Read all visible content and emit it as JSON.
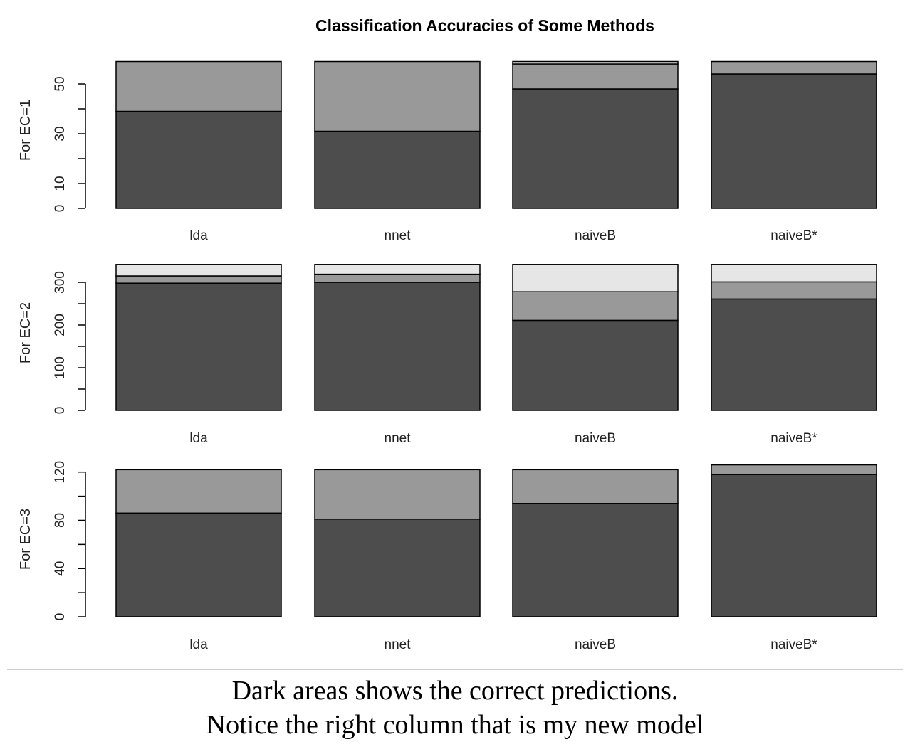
{
  "chart_data": {
    "type": "bar",
    "title": "Classification Accuracies of Some Methods",
    "stacked": true,
    "colors": [
      "#4d4d4d",
      "#999999",
      "#e6e6e6"
    ],
    "categories": [
      "lda",
      "nnet",
      "naiveB",
      "naiveB*"
    ],
    "panels": [
      {
        "ylabel": "For EC=1",
        "ylim": [
          0,
          60
        ],
        "yticks": [
          0,
          10,
          20,
          30,
          40,
          50
        ],
        "ytick_labels": [
          "0",
          "10",
          "",
          "30",
          "",
          "50"
        ],
        "series": [
          {
            "values": [
              39,
              31,
              48,
              54
            ]
          },
          {
            "values": [
              20,
              28,
              10,
              5
            ]
          },
          {
            "values": [
              0,
              0,
              1,
              0
            ]
          }
        ]
      },
      {
        "ylabel": "For EC=2",
        "ylim": [
          0,
          350
        ],
        "yticks": [
          0,
          50,
          100,
          150,
          200,
          250,
          300
        ],
        "ytick_labels": [
          "0",
          "",
          "100",
          "",
          "200",
          "",
          "300"
        ],
        "series": [
          {
            "values": [
              298,
              300,
              211,
              261
            ]
          },
          {
            "values": [
              17,
              19,
              67,
              40
            ]
          },
          {
            "values": [
              27,
              23,
              64,
              41
            ]
          }
        ]
      },
      {
        "ylabel": "For EC=3",
        "ylim": [
          0,
          130
        ],
        "yticks": [
          0,
          20,
          40,
          60,
          80,
          100,
          120
        ],
        "ytick_labels": [
          "0",
          "",
          "40",
          "",
          "80",
          "",
          "120"
        ],
        "series": [
          {
            "values": [
              86,
              81,
              94,
              118
            ]
          },
          {
            "values": [
              36,
              41,
              28,
              8
            ]
          },
          {
            "values": [
              0,
              0,
              0,
              0
            ]
          }
        ]
      }
    ]
  },
  "caption": {
    "line1": "Dark areas shows the correct predictions.",
    "line2": "Notice the right column that is my new model"
  }
}
